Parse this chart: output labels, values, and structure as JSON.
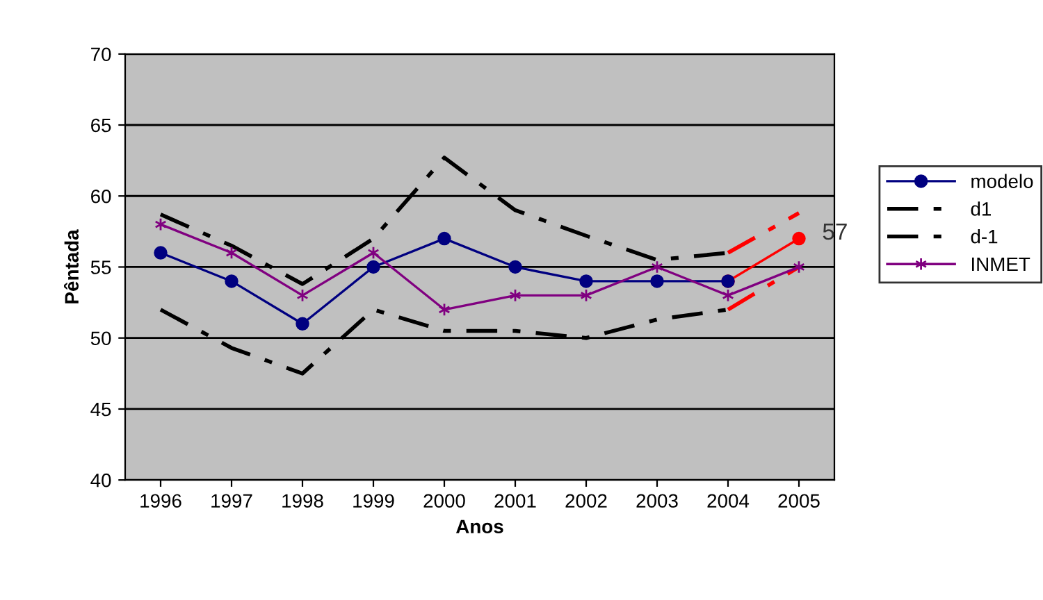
{
  "chart_data": {
    "type": "line",
    "xlabel": "Anos",
    "ylabel": "Pêntada",
    "categories": [
      "1996",
      "1997",
      "1998",
      "1999",
      "2000",
      "2001",
      "2002",
      "2003",
      "2004",
      "2005"
    ],
    "ylim": [
      40,
      70
    ],
    "yticks": [
      40,
      45,
      50,
      55,
      60,
      65,
      70
    ],
    "grid": "y",
    "legend": "right",
    "series": [
      {
        "name": "modelo",
        "color": "#000080",
        "marker": "circle",
        "line_style": "solid",
        "values": [
          56,
          54,
          51,
          55,
          57,
          55,
          54,
          54,
          54,
          null
        ]
      },
      {
        "name": "d1",
        "color": "#000000",
        "marker": "none",
        "line_style": "dashed",
        "values": [
          58.7,
          56.5,
          53.8,
          57,
          62.7,
          59,
          57.2,
          55.5,
          56,
          null
        ]
      },
      {
        "name": "d-1",
        "color": "#000000",
        "marker": "none",
        "line_style": "dashed",
        "values": [
          52,
          49.3,
          47.5,
          52,
          50.5,
          50.5,
          50,
          51.3,
          52,
          null
        ]
      },
      {
        "name": "INMET",
        "color": "#800080",
        "marker": "cross",
        "line_style": "solid",
        "values": [
          58,
          56,
          53,
          56,
          52,
          53,
          53,
          55,
          53,
          55
        ]
      },
      {
        "color": "#ff0000",
        "marker": "circle",
        "line_style": "solid",
        "values": [
          null,
          null,
          null,
          null,
          null,
          null,
          null,
          null,
          54,
          57
        ]
      },
      {
        "color": "#ff0000",
        "marker": "none",
        "line_style": "dashed",
        "values": [
          null,
          null,
          null,
          null,
          null,
          null,
          null,
          null,
          56,
          58.8
        ]
      },
      {
        "color": "#ff0000",
        "marker": "none",
        "line_style": "dashed",
        "values": [
          null,
          null,
          null,
          null,
          null,
          null,
          null,
          null,
          52,
          55
        ]
      }
    ],
    "annotations": [
      {
        "text": "57",
        "x": "2005",
        "y": 57
      }
    ]
  }
}
